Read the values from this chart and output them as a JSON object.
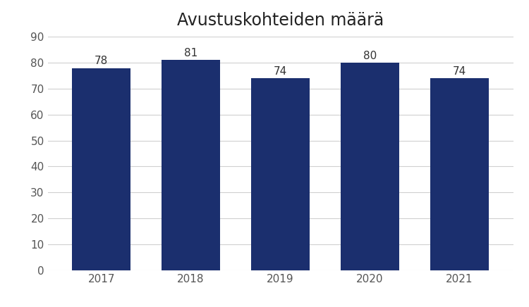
{
  "title": "Avustuskohteiden määrä",
  "categories": [
    "2017",
    "2018",
    "2019",
    "2020",
    "2021"
  ],
  "values": [
    78,
    81,
    74,
    80,
    74
  ],
  "bar_color": "#1b2f6e",
  "ylim": [
    0,
    90
  ],
  "yticks": [
    0,
    10,
    20,
    30,
    40,
    50,
    60,
    70,
    80,
    90
  ],
  "title_fontsize": 17,
  "tick_fontsize": 11,
  "label_fontsize": 11,
  "background_color": "#ffffff",
  "grid_color": "#d0d0d0",
  "bar_width": 0.65
}
